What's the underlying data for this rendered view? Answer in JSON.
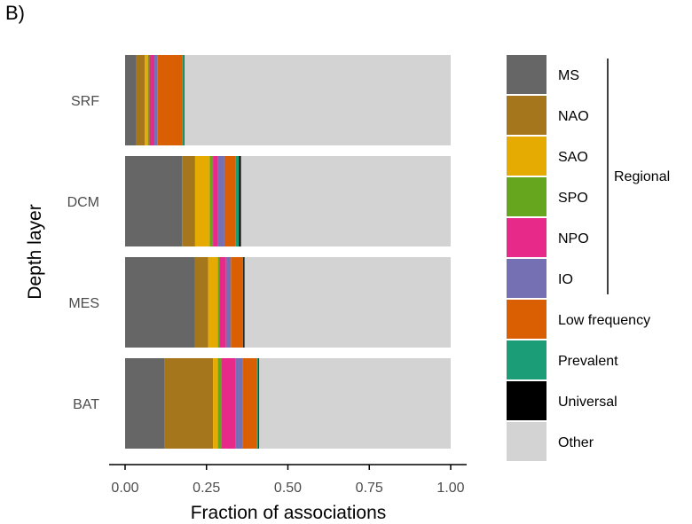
{
  "panel_label": "B)",
  "chart_data": {
    "type": "bar",
    "orientation": "horizontal",
    "stacked": true,
    "xlabel": "Fraction of associations",
    "ylabel": "Depth layer",
    "xlim": [
      0,
      1
    ],
    "x_ticks": [
      "0.00",
      "0.25",
      "0.50",
      "0.75",
      "1.00"
    ],
    "categories": [
      "SRF",
      "DCM",
      "MES",
      "BAT"
    ],
    "series": [
      {
        "name": "MS",
        "color": "#666666",
        "values": [
          0.035,
          0.175,
          0.215,
          0.12
        ]
      },
      {
        "name": "NAO",
        "color": "#a6761d",
        "values": [
          0.025,
          0.04,
          0.04,
          0.15
        ]
      },
      {
        "name": "SAO",
        "color": "#e6ab02",
        "values": [
          0.01,
          0.045,
          0.03,
          0.015
        ]
      },
      {
        "name": "SPO",
        "color": "#66a61e",
        "values": [
          0.005,
          0.01,
          0.005,
          0.01
        ]
      },
      {
        "name": "NPO",
        "color": "#e7298a",
        "values": [
          0.015,
          0.015,
          0.02,
          0.045
        ]
      },
      {
        "name": "IO",
        "color": "#7570b3",
        "values": [
          0.01,
          0.02,
          0.015,
          0.02
        ]
      },
      {
        "name": "Low frequency",
        "color": "#d95f02",
        "values": [
          0.075,
          0.035,
          0.035,
          0.045
        ]
      },
      {
        "name": "Prevalent",
        "color": "#1b9e77",
        "values": [
          0.005,
          0.01,
          0.003,
          0.005
        ]
      },
      {
        "name": "Universal",
        "color": "#000000",
        "values": [
          0.002,
          0.006,
          0.004,
          0.002
        ]
      },
      {
        "name": "Other",
        "color": "#d3d3d3",
        "values": [
          0.818,
          0.644,
          0.633,
          0.588
        ]
      }
    ],
    "legend": {
      "placement": "right",
      "group_label": "Regional",
      "group_members": [
        "MS",
        "NAO",
        "SAO",
        "SPO",
        "NPO",
        "IO"
      ]
    },
    "grid": false
  }
}
